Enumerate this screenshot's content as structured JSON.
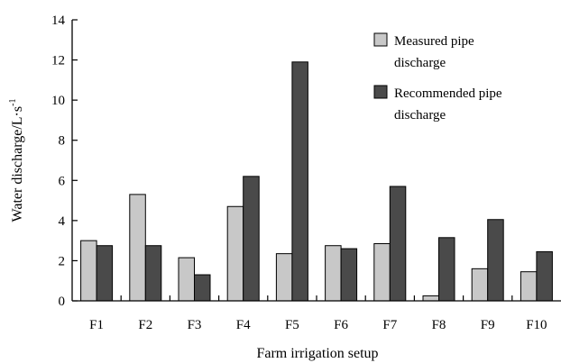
{
  "chart_data": {
    "type": "bar",
    "xlabel": "Farm irrigation setup",
    "ylabel": "Water discharge/L·s",
    "ylabel_superscript": "-1",
    "categories": [
      "F1",
      "F2",
      "F3",
      "F4",
      "F5",
      "F6",
      "F7",
      "F8",
      "F9",
      "F10"
    ],
    "ylim": [
      0,
      14
    ],
    "yticks": [
      "0",
      "2",
      "4",
      "6",
      "8",
      "10",
      "12",
      "14"
    ],
    "grid": false,
    "legend_position": "top-right",
    "series": [
      {
        "name": "Measured pipe discharge",
        "legend_lines": [
          "Measured pipe",
          "discharge"
        ],
        "color": "#c8c8c8",
        "values": [
          3.0,
          5.3,
          2.15,
          4.7,
          2.35,
          2.75,
          2.85,
          0.25,
          1.6,
          1.45
        ]
      },
      {
        "name": "Recommended pipe discharge",
        "legend_lines": [
          "Recommended pipe",
          "discharge"
        ],
        "color": "#4a4a4a",
        "values": [
          2.75,
          2.75,
          1.3,
          6.2,
          11.9,
          2.6,
          5.7,
          3.15,
          4.05,
          2.45
        ]
      }
    ]
  }
}
